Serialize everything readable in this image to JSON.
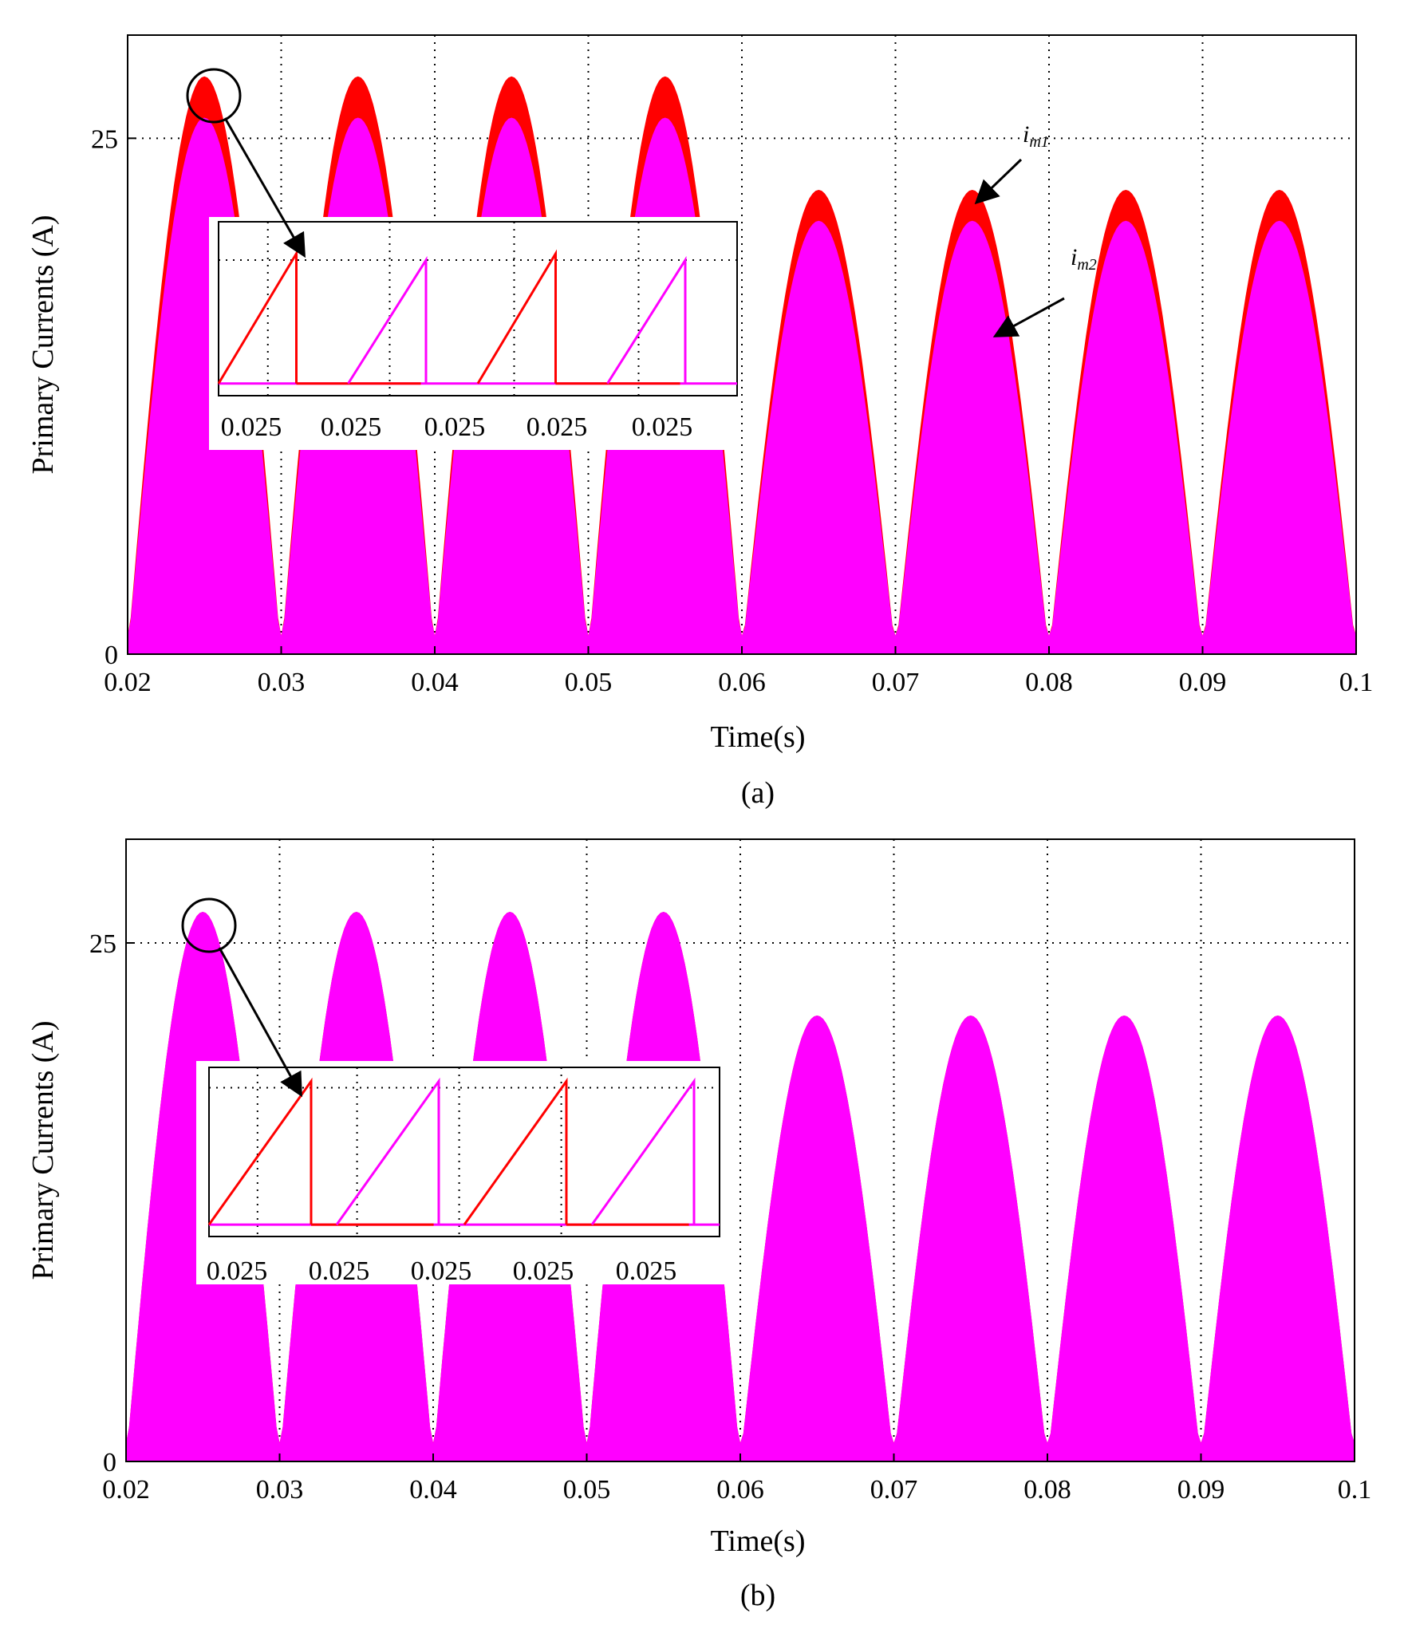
{
  "figure": {
    "caption_a": "(a)",
    "caption_b": "(b)"
  },
  "colors": {
    "im1": "#ff0000",
    "im2": "#ff00ff",
    "axis": "#000000",
    "background": "#ffffff"
  },
  "chart_data": [
    {
      "type": "area",
      "panel": "a",
      "caption": "(a)",
      "xlabel": "Time(s)",
      "ylabel": "Primary Currents (A)",
      "xlim": [
        0.02,
        0.1
      ],
      "ylim": [
        0,
        30
      ],
      "xticks": [
        0.02,
        0.03,
        0.04,
        0.05,
        0.06,
        0.07,
        0.08,
        0.09,
        0.1
      ],
      "xtick_labels": [
        "0.02",
        "0.03",
        "0.04",
        "0.05",
        "0.06",
        "0.07",
        "0.08",
        "0.09",
        "0.1"
      ],
      "yticks": [
        0,
        25
      ],
      "ytick_labels": [
        "0",
        "25"
      ],
      "grid": true,
      "envelope": "rectified sine, half-period 0.01 s",
      "series": [
        {
          "name": "im1",
          "label": "i_m1",
          "color": "#ff0000",
          "peaks_x": [
            0.025,
            0.035,
            0.045,
            0.055,
            0.065,
            0.075,
            0.085,
            0.095
          ],
          "peaks_y": [
            28,
            28,
            28,
            28,
            22.5,
            22.5,
            22.5,
            22.5
          ]
        },
        {
          "name": "im2",
          "label": "i_m2",
          "color": "#ff00ff",
          "peaks_x": [
            0.025,
            0.035,
            0.045,
            0.055,
            0.065,
            0.075,
            0.085,
            0.095
          ],
          "peaks_y": [
            26,
            26,
            26,
            26,
            21,
            21,
            21,
            21
          ]
        }
      ],
      "annotations": {
        "im1_label": "i",
        "im1_sub": "m1",
        "im2_label": "i",
        "im2_sub": "m2"
      },
      "inset": {
        "xtick_labels": [
          "0.025",
          "0.025",
          "0.025",
          "0.025",
          "0.025"
        ],
        "ramps": [
          {
            "series": "im1",
            "start": 0.0,
            "end": 0.15,
            "height": 1.0
          },
          {
            "series": "im2",
            "start": 0.25,
            "end": 0.4,
            "height": 0.95
          },
          {
            "series": "im1",
            "start": 0.5,
            "end": 0.65,
            "height": 1.0
          },
          {
            "series": "im2",
            "start": 0.75,
            "end": 0.9,
            "height": 0.95
          }
        ]
      }
    },
    {
      "type": "area",
      "panel": "b",
      "caption": "(b)",
      "xlabel": "Time(s)",
      "ylabel": "Primary Currents (A)",
      "xlim": [
        0.02,
        0.1
      ],
      "ylim": [
        0,
        30
      ],
      "xticks": [
        0.02,
        0.03,
        0.04,
        0.05,
        0.06,
        0.07,
        0.08,
        0.09,
        0.1
      ],
      "xtick_labels": [
        "0.02",
        "0.03",
        "0.04",
        "0.05",
        "0.06",
        "0.07",
        "0.08",
        "0.09",
        "0.1"
      ],
      "yticks": [
        0,
        25
      ],
      "ytick_labels": [
        "0",
        "25"
      ],
      "grid": true,
      "envelope": "rectified sine, half-period 0.01 s",
      "series": [
        {
          "name": "im1",
          "label": "i_m1",
          "color": "#ff0000",
          "peaks_x": [
            0.025,
            0.035,
            0.045,
            0.055,
            0.065,
            0.075,
            0.085,
            0.095
          ],
          "peaks_y": [
            26.5,
            26.5,
            26.5,
            26.5,
            21.5,
            21.5,
            21.5,
            21.5
          ]
        },
        {
          "name": "im2",
          "label": "i_m2",
          "color": "#ff00ff",
          "peaks_x": [
            0.025,
            0.035,
            0.045,
            0.055,
            0.065,
            0.075,
            0.085,
            0.095
          ],
          "peaks_y": [
            26.5,
            26.5,
            26.5,
            26.5,
            21.5,
            21.5,
            21.5,
            21.5
          ]
        }
      ],
      "inset": {
        "xtick_labels": [
          "0.025",
          "0.025",
          "0.025",
          "0.025",
          "0.025"
        ],
        "ramps": [
          {
            "series": "im1",
            "start": 0.0,
            "end": 0.2,
            "height": 1.0
          },
          {
            "series": "im2",
            "start": 0.25,
            "end": 0.45,
            "height": 1.0
          },
          {
            "series": "im1",
            "start": 0.5,
            "end": 0.7,
            "height": 1.0
          },
          {
            "series": "im2",
            "start": 0.75,
            "end": 0.95,
            "height": 1.0
          }
        ]
      }
    }
  ]
}
